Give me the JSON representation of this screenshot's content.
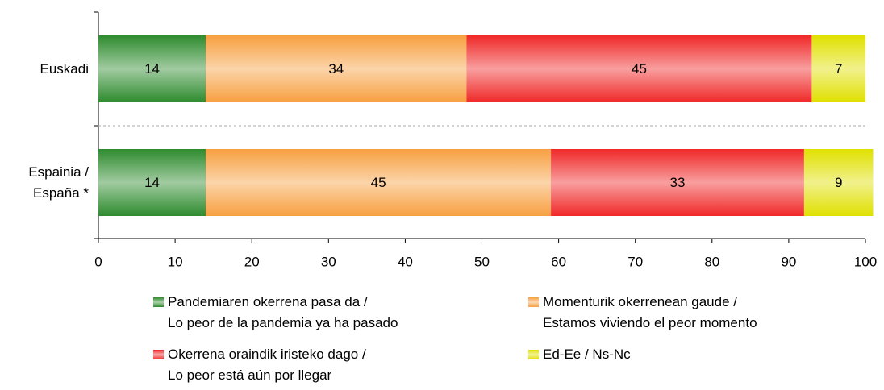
{
  "chart_data": {
    "type": "stacked_bar_horizontal",
    "categories": [
      "Euskadi",
      "Espainia /\nEspaña *"
    ],
    "series": [
      {
        "name": "Pandemiaren okerrena pasa da /\nLo peor de la pandemia ya ha pasado",
        "color": "#2e8b2e",
        "values": [
          14,
          14
        ]
      },
      {
        "name": "Momenturik okerrenean gaude /\nEstamos viviendo el peor momento",
        "color": "#f7a040",
        "values": [
          34,
          45
        ]
      },
      {
        "name": "Okerrena oraindik iristeko dago /\nLo peor está aún por llegar",
        "color": "#f02828",
        "values": [
          45,
          33
        ]
      },
      {
        "name": "Ed-Ee / Ns-Nc",
        "color": "#e0e000",
        "values": [
          7,
          9
        ]
      }
    ],
    "xlim": [
      0,
      100
    ],
    "xticks": [
      0,
      10,
      20,
      30,
      40,
      50,
      60,
      70,
      80,
      90,
      100
    ]
  }
}
